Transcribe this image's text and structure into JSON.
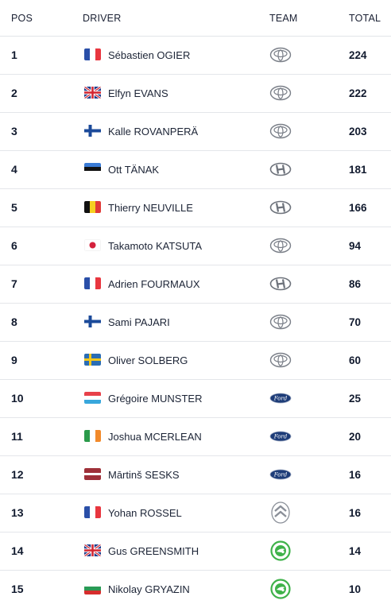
{
  "header": {
    "pos": "POS",
    "driver": "DRIVER",
    "team": "TEAM",
    "total": "TOTAL"
  },
  "rows": [
    {
      "pos": "1",
      "driver": "Sébastien OGIER",
      "flag": "france",
      "team_icon": "toyota-logo",
      "total": "224"
    },
    {
      "pos": "2",
      "driver": "Elfyn EVANS",
      "flag": "uk",
      "team_icon": "toyota-logo",
      "total": "222"
    },
    {
      "pos": "3",
      "driver": "Kalle ROVANPERÄ",
      "flag": "finland",
      "team_icon": "toyota-logo",
      "total": "203"
    },
    {
      "pos": "4",
      "driver": "Ott TÄNAK",
      "flag": "estonia",
      "team_icon": "hyundai-logo",
      "total": "181"
    },
    {
      "pos": "5",
      "driver": "Thierry NEUVILLE",
      "flag": "belgium",
      "team_icon": "hyundai-logo",
      "total": "166"
    },
    {
      "pos": "6",
      "driver": "Takamoto KATSUTA",
      "flag": "japan",
      "team_icon": "toyota-logo",
      "total": "94"
    },
    {
      "pos": "7",
      "driver": "Adrien FOURMAUX",
      "flag": "france",
      "team_icon": "hyundai-logo",
      "total": "86"
    },
    {
      "pos": "8",
      "driver": "Sami PAJARI",
      "flag": "finland",
      "team_icon": "toyota-logo",
      "total": "70"
    },
    {
      "pos": "9",
      "driver": "Oliver SOLBERG",
      "flag": "sweden",
      "team_icon": "toyota-logo",
      "total": "60"
    },
    {
      "pos": "10",
      "driver": "Grégoire MUNSTER",
      "flag": "luxembourg",
      "team_icon": "ford-logo",
      "total": "25"
    },
    {
      "pos": "11",
      "driver": "Joshua MCERLEAN",
      "flag": "ireland",
      "team_icon": "ford-logo",
      "total": "20"
    },
    {
      "pos": "12",
      "driver": "Mārtinš SESKS",
      "flag": "latvia",
      "team_icon": "ford-logo",
      "total": "16"
    },
    {
      "pos": "13",
      "driver": "Yohan ROSSEL",
      "flag": "france",
      "team_icon": "citroen-logo",
      "total": "16"
    },
    {
      "pos": "14",
      "driver": "Gus GREENSMITH",
      "flag": "uk",
      "team_icon": "skoda-logo",
      "total": "14"
    },
    {
      "pos": "15",
      "driver": "Nikolay GRYAZIN",
      "flag": "bulgaria",
      "team_icon": "skoda-logo",
      "total": "10"
    }
  ],
  "colors": {
    "row_border": "#e4e6ea",
    "text": "#1c2436",
    "skoda_green": "#3fb24a",
    "ford_blue": "#1d3c78"
  }
}
